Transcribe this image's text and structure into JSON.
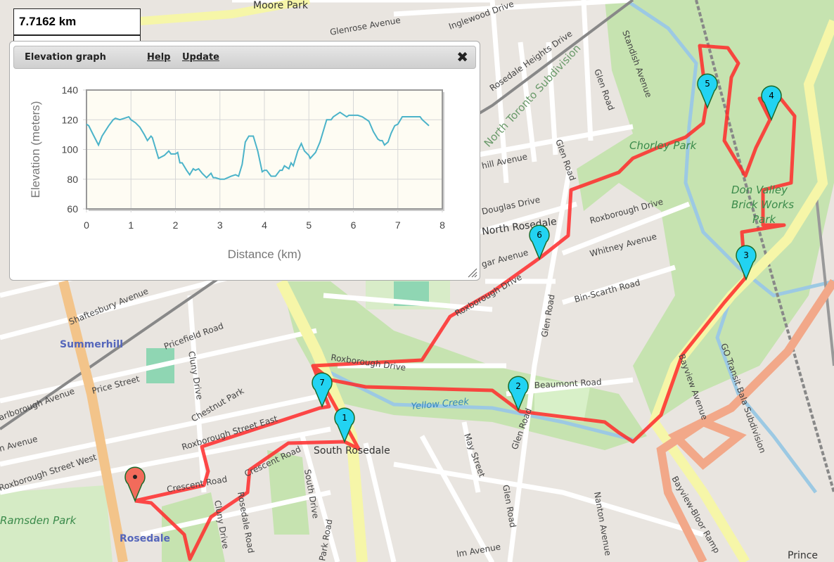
{
  "distance_readout": "7.7162 km",
  "panel": {
    "title": "Elevation graph",
    "help_label": "Help",
    "update_label": "Update",
    "close_icon": "close-x-icon"
  },
  "colors": {
    "route": "#ff2a2a",
    "elevation_line": "#4bb3c9",
    "marker": "#22d3f2",
    "start_marker": "#f26b5b"
  },
  "map": {
    "labels": [
      "Moore Park",
      "Glenrose Avenue",
      "Inglewood Drive",
      "Rosedale Heights Drive",
      "North Toronto Subdivision",
      "Standish Avenue",
      "Glen Road",
      "Glen Road",
      "Glen Road",
      "Glen Road",
      "Glen Road",
      "hill Avenue",
      "Douglas Drive",
      "North Rosedale",
      "Roxborough Drive",
      "Whitney Avenue",
      "Bin-Scarth Road",
      "gar Avenue",
      "Roxborough Drive",
      "Roxborough Drive",
      "Beaumont Road",
      "Yellow Creek",
      "Shaftesbury Avenue",
      "Summerhill",
      "Pricefield Road",
      "Cluny Drive",
      "Chestnut Park",
      "Price Street",
      "arlborough Avenue",
      "Roxborough Street East",
      "Roxborough Street West",
      "n Avenue",
      "Crescent Road",
      "Crescent Road",
      "Rosedale Road",
      "South Drive",
      "South Rosedale",
      "May Street",
      "Cluny Drive",
      "Park Road",
      "Ramsden Park",
      "Rosedale",
      "Chorley Park",
      "Don Valley Brick Works Park",
      "Bayview Avenue",
      "GO Transit Bala Subdivision",
      "Bayview-Bloor Ramp",
      "Nanton Avenue",
      "lm Avenue",
      "Prince"
    ],
    "markers": [
      "1",
      "2",
      "3",
      "4",
      "5",
      "6",
      "7"
    ]
  },
  "chart_data": {
    "type": "line",
    "xlabel": "Distance (km)",
    "ylabel": "Elevation (meters)",
    "xlim": [
      0,
      8
    ],
    "ylim": [
      60,
      140
    ],
    "xticks": [
      "0",
      "1",
      "2",
      "3",
      "4",
      "5",
      "6",
      "7",
      "8"
    ],
    "yticks": [
      "60",
      "80",
      "100",
      "120",
      "140"
    ],
    "grid": true,
    "series": [
      {
        "x": [
          0,
          0.05,
          0.15,
          0.27,
          0.35,
          0.5,
          0.6,
          0.65,
          0.75,
          0.85,
          0.95,
          1.0,
          1.1,
          1.2,
          1.3,
          1.37,
          1.45,
          1.48,
          1.55,
          1.62,
          1.75,
          1.85,
          1.9,
          2.0,
          2.05,
          2.1,
          2.15,
          2.25,
          2.32,
          2.4,
          2.45,
          2.52,
          2.6,
          2.7,
          2.8,
          2.85,
          2.9,
          3.0,
          3.1,
          3.25,
          3.35,
          3.42,
          3.5,
          3.57,
          3.65,
          3.75,
          3.85,
          3.95,
          4.0,
          4.05,
          4.15,
          4.25,
          4.35,
          4.4,
          4.45,
          4.55,
          4.6,
          4.65,
          4.75,
          4.83,
          4.9,
          5.0,
          5.03,
          5.15,
          5.25,
          5.35,
          5.4,
          5.5,
          5.55,
          5.7,
          5.8,
          5.85,
          5.9,
          6.1,
          6.2,
          6.3,
          6.35,
          6.45,
          6.55,
          6.6,
          6.65,
          6.7,
          6.78,
          6.85,
          6.93,
          7.0,
          7.1,
          7.5,
          7.55,
          7.7
        ],
        "y": [
          117,
          116,
          110,
          103,
          109,
          116,
          120,
          121,
          120,
          121,
          122,
          120,
          118,
          115,
          110,
          106,
          109,
          108,
          101,
          94,
          96,
          99,
          97,
          97,
          98,
          91,
          91,
          86,
          83,
          87,
          86,
          87,
          84,
          81,
          84,
          81,
          81,
          80,
          80,
          82,
          83,
          82,
          90,
          105,
          109,
          109,
          99,
          85,
          86,
          86,
          82,
          82,
          86,
          86,
          89,
          87,
          91,
          89,
          99,
          104,
          99,
          96,
          94,
          98,
          105,
          115,
          120,
          120,
          122,
          125,
          123,
          122,
          123,
          123,
          122,
          120,
          119,
          112,
          107,
          106,
          106,
          103,
          105,
          111,
          116,
          117,
          122,
          122,
          120,
          116
        ]
      }
    ]
  }
}
